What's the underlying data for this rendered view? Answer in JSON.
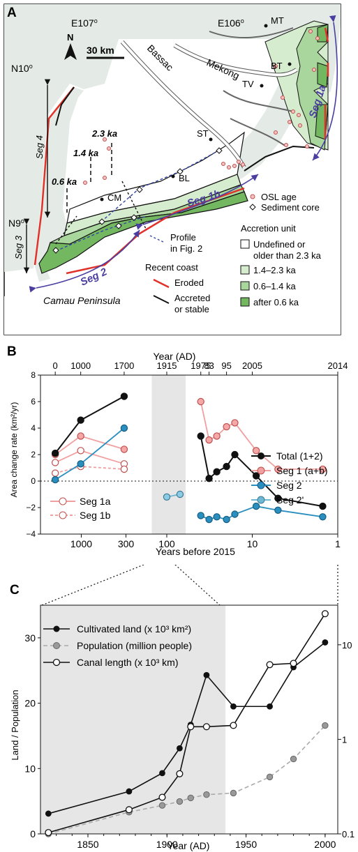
{
  "panel_a": {
    "letter": "A",
    "north": "N",
    "scale": "30 km",
    "lon_labels": [
      "E107",
      "E106"
    ],
    "lat_labels": [
      "N10",
      "N9"
    ],
    "degree": "o",
    "river_labels": [
      "Bassac",
      "Mekong"
    ],
    "places": [
      "MT",
      "BT",
      "TV",
      "ST",
      "BL",
      "CM"
    ],
    "ages": [
      "2.3 ka",
      "1.4 ka",
      "0.6 ka"
    ],
    "segments": [
      "Seg 1a",
      "Seg 1b",
      "Seg 2",
      "Seg 3",
      "Seg 4"
    ],
    "symbols": {
      "osl": "OSL age",
      "core": "Sediment core",
      "profile1": "Profile",
      "profile2": "in Fig. 2"
    },
    "coast": {
      "title": "Recent coast",
      "eroded": "Eroded",
      "accreted1": "Accreted",
      "accreted2": "or stable"
    },
    "units": {
      "title": "Accretion unit",
      "u1a": "Undefined or",
      "u1b": "older than 2.3 ka",
      "u2": "1.4–2.3 ka",
      "u3": "0.6–1.4 ka",
      "u4": "after 0.6 ka"
    },
    "peninsula": "Camau Peninsula",
    "colors": {
      "sea": "#ffffff",
      "land": "#e4ebe6",
      "unit_old": "#ffffff",
      "unit_14_23": "#d6ecce",
      "unit_06_14": "#a9d69c",
      "unit_after06": "#73b860",
      "eroded": "#e0322a",
      "seg_arrow": "#4a3fa0",
      "osl": "#e0787a"
    }
  },
  "panel_b": {
    "letter": "B",
    "top_axis_title": "Year (AD)",
    "bottom_axis_title": "Years before 2015",
    "y_axis_title": "Area change rate (km²/yr)",
    "top_ticks": [
      "0",
      "1000",
      "1700",
      "1915",
      "1975",
      "83",
      "95",
      "2005",
      "2014"
    ],
    "bottom_ticks": [
      "1000",
      "300",
      "100",
      "10",
      "1"
    ]
  },
  "panel_c": {
    "letter": "C",
    "x_axis_title": "Year (AD)",
    "y_axis_title": "Land / Population",
    "legend": [
      "Cultivated land (x 10³ km²)",
      "Population (million people)",
      "Canal length (x 10³ km)"
    ]
  },
  "chart_data": [
    {
      "type": "line",
      "panel": "B",
      "x_axis": "Years before 2015 (log scale)",
      "xlim": [
        1,
        3000
      ],
      "ylim": [
        -4,
        8
      ],
      "y_ticks": [
        -4,
        -2,
        0,
        2,
        4,
        6,
        8
      ],
      "legend_main": "top-right",
      "legend_seg1": "bottom-left",
      "series": [
        {
          "name": "Total (1+2)",
          "color": "#111111",
          "marker": "filled-black",
          "segments": [
            {
              "x": [
                2015,
                1015,
                315
              ],
              "y": [
                2.1,
                4.6,
                6.4
              ]
            },
            {
              "x": [
                40,
                32,
                26,
                20,
                16,
                9,
                5,
                1.5
              ],
              "y": [
                3.4,
                0.2,
                0.7,
                1.1,
                2.0,
                0.4,
                -1.3,
                -1.9
              ]
            }
          ]
        },
        {
          "name": "Seg 1 (a+b)",
          "color": "#f0a0a0",
          "marker": "filled-pink",
          "segments": [
            {
              "x": [
                2015,
                1015,
                315
              ],
              "y": [
                2.0,
                3.4,
                2.4
              ]
            },
            {
              "x": [
                40,
                32,
                26,
                20,
                16,
                9,
                5,
                1.5
              ],
              "y": [
                6.0,
                3.1,
                3.4,
                4.1,
                4.4,
                2.3,
                0.9,
                0.9
              ]
            }
          ]
        },
        {
          "name": "Seg 2",
          "color": "#2a8fbf",
          "marker": "filled-blue",
          "segments": [
            {
              "x": [
                2015,
                1015,
                315
              ],
              "y": [
                0.1,
                1.3,
                4.0
              ]
            },
            {
              "x": [
                40,
                32,
                26,
                20,
                16,
                9,
                5,
                1.5
              ],
              "y": [
                -2.6,
                -2.9,
                -2.7,
                -2.9,
                -2.5,
                -1.9,
                -2.2,
                -2.7
              ]
            }
          ]
        },
        {
          "name": "Seg 2'",
          "color": "#6fb8d4",
          "marker": "filled-lightblue",
          "segments": [
            {
              "x": [
                100,
                70
              ],
              "y": [
                -1.2,
                -1.0
              ]
            }
          ]
        },
        {
          "name": "Seg 1a",
          "color": "#f0a0a0",
          "marker": "open-pink",
          "dash": "solid",
          "segments": [
            {
              "x": [
                2015,
                1015,
                315
              ],
              "y": [
                1.4,
                2.3,
                1.3
              ]
            }
          ]
        },
        {
          "name": "Seg 1b",
          "color": "#f0a0a0",
          "marker": "open-pink",
          "dash": "dashed",
          "segments": [
            {
              "x": [
                2015,
                1015,
                315
              ],
              "y": [
                0.6,
                1.1,
                0.9
              ]
            }
          ]
        }
      ],
      "shaded_band": [
        150,
        60
      ]
    },
    {
      "type": "line",
      "panel": "C",
      "xlim": [
        1820,
        2008
      ],
      "ylim": [
        0,
        35
      ],
      "x_ticks": [
        1850,
        1900,
        1950,
        2000
      ],
      "y_ticks": [
        0,
        10,
        20,
        30
      ],
      "y2_ticks": [
        "0.1",
        "1",
        "10"
      ],
      "y2_scale": "log",
      "legend_position": "top-left",
      "shaded_band": [
        1820,
        1937
      ],
      "series": [
        {
          "name": "Cultivated land (x 10³ km²)",
          "color": "#111111",
          "marker": "filled-black",
          "x": [
            1825,
            1876,
            1897,
            1908,
            1915,
            1925,
            1942,
            1965,
            1980,
            2000
          ],
          "y": [
            3.1,
            6.5,
            9.3,
            13.1,
            16.7,
            24.3,
            19.5,
            19.5,
            25.5,
            29.3
          ]
        },
        {
          "name": "Population (million people)",
          "color": "#999999",
          "marker": "filled-gray",
          "x": [
            1825,
            1876,
            1897,
            1908,
            1915,
            1925,
            1942,
            1965,
            1980,
            2000
          ],
          "y": [
            0.1,
            0.17,
            0.2,
            0.22,
            0.24,
            0.26,
            0.27,
            0.4,
            0.62,
            1.4
          ]
        },
        {
          "name": "Canal length (x 10³ km)",
          "color": "#111111",
          "marker": "open-black",
          "x": [
            1825,
            1876,
            1897,
            1908,
            1915,
            1925,
            1942,
            1965,
            1980,
            2000
          ],
          "y": [
            0.2,
            3.7,
            5.6,
            9.2,
            16.4,
            16.4,
            16.6,
            25.9,
            26.1,
            33.7
          ]
        }
      ]
    }
  ]
}
